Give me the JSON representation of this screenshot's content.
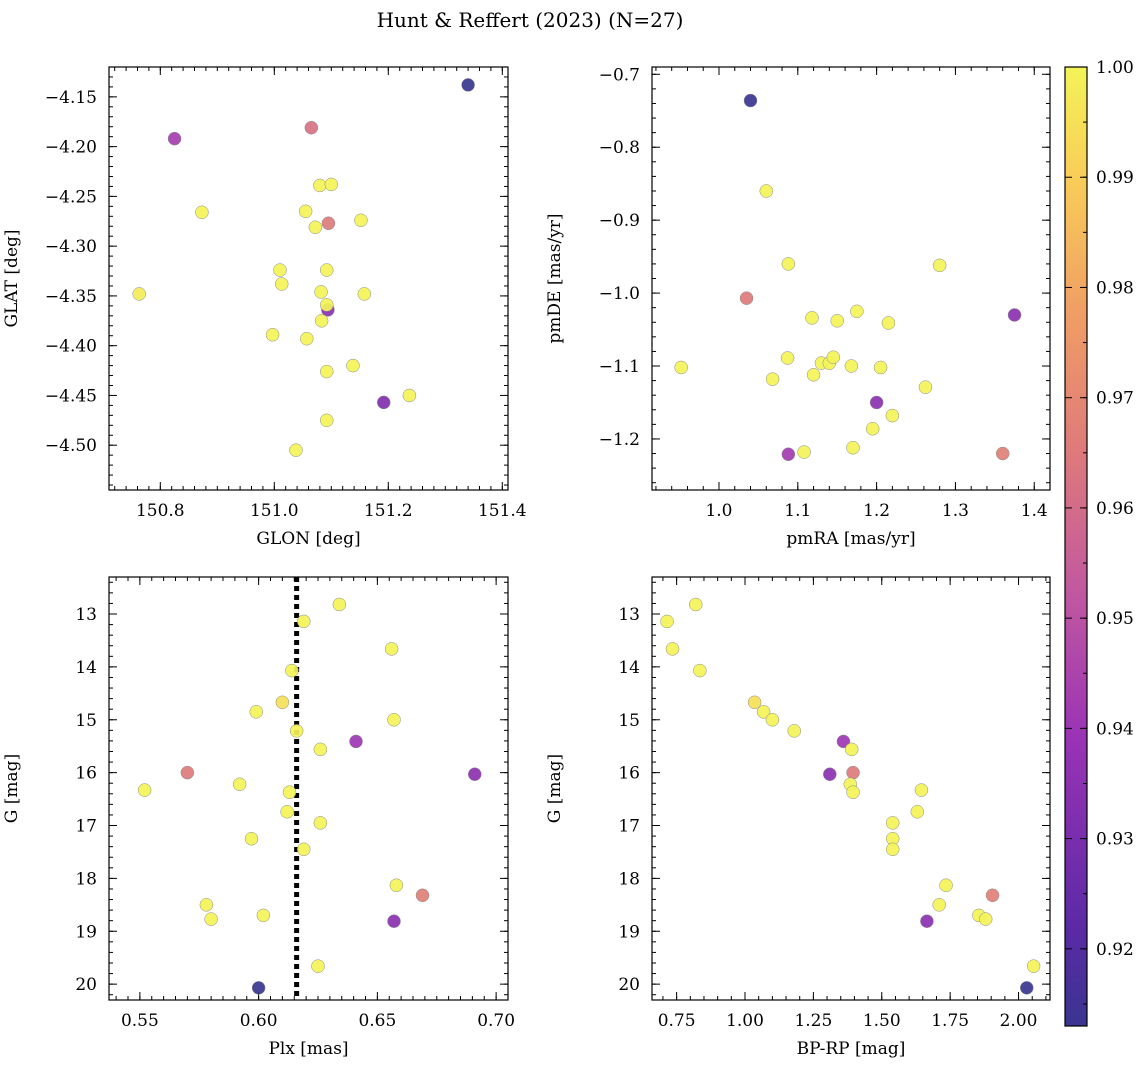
{
  "chart_data": {
    "title": "Hunt & Reffert (2023) (N=27)",
    "colormap": "plasma",
    "colorbar": {
      "vmin": 0.913,
      "vmax": 1.0,
      "ticks": [
        0.92,
        0.93,
        0.94,
        0.95,
        0.96,
        0.97,
        0.98,
        0.99,
        1.0
      ],
      "tick_labels": [
        "0.92",
        "0.93",
        "0.94",
        "0.95",
        "0.96",
        "0.97",
        "0.98",
        "0.99",
        "1.00"
      ]
    },
    "panels": [
      {
        "type": "scatter",
        "xlabel": "GLON [deg]",
        "ylabel": "GLAT [deg]",
        "xlim": [
          150.71,
          151.41
        ],
        "ylim": [
          -4.545,
          -4.12
        ],
        "y_inverted": false,
        "xticks": [
          150.8,
          151.0,
          151.2,
          151.4
        ],
        "xtick_labels": [
          "150.8",
          "151.0",
          "151.2",
          "151.4"
        ],
        "yticks": [
          -4.5,
          -4.45,
          -4.4,
          -4.35,
          -4.3,
          -4.25,
          -4.2,
          -4.15
        ],
        "ytick_labels": [
          "−4.50",
          "−4.45",
          "−4.40",
          "−4.35",
          "−4.30",
          "−4.25",
          "−4.20",
          "−4.15"
        ],
        "x_minor": 0.02,
        "y_minor": 0.01,
        "points": [
          {
            "x": 151.34,
            "y": -4.138,
            "c": 0.913
          },
          {
            "x": 150.825,
            "y": -4.192,
            "c": 0.943
          },
          {
            "x": 151.065,
            "y": -4.181,
            "c": 0.962
          },
          {
            "x": 150.873,
            "y": -4.266,
            "c": 1.0
          },
          {
            "x": 151.08,
            "y": -4.239,
            "c": 1.0
          },
          {
            "x": 151.1,
            "y": -4.238,
            "c": 1.0
          },
          {
            "x": 151.055,
            "y": -4.265,
            "c": 1.0
          },
          {
            "x": 151.072,
            "y": -4.281,
            "c": 1.0
          },
          {
            "x": 151.095,
            "y": -4.277,
            "c": 0.965
          },
          {
            "x": 151.152,
            "y": -4.274,
            "c": 1.0
          },
          {
            "x": 150.763,
            "y": -4.348,
            "c": 0.998
          },
          {
            "x": 151.01,
            "y": -4.324,
            "c": 1.0
          },
          {
            "x": 151.013,
            "y": -4.338,
            "c": 1.0
          },
          {
            "x": 151.092,
            "y": -4.324,
            "c": 1.0
          },
          {
            "x": 151.082,
            "y": -4.346,
            "c": 1.0
          },
          {
            "x": 151.158,
            "y": -4.348,
            "c": 1.0
          },
          {
            "x": 151.094,
            "y": -4.364,
            "c": 0.935
          },
          {
            "x": 151.092,
            "y": -4.359,
            "c": 1.0
          },
          {
            "x": 151.083,
            "y": -4.375,
            "c": 1.0
          },
          {
            "x": 150.997,
            "y": -4.389,
            "c": 1.0
          },
          {
            "x": 151.057,
            "y": -4.393,
            "c": 1.0
          },
          {
            "x": 151.092,
            "y": -4.426,
            "c": 1.0
          },
          {
            "x": 151.138,
            "y": -4.42,
            "c": 1.0
          },
          {
            "x": 151.192,
            "y": -4.457,
            "c": 0.932
          },
          {
            "x": 151.237,
            "y": -4.45,
            "c": 1.0
          },
          {
            "x": 151.092,
            "y": -4.475,
            "c": 1.0
          },
          {
            "x": 151.038,
            "y": -4.505,
            "c": 1.0
          }
        ]
      },
      {
        "type": "scatter",
        "xlabel": "pmRA [mas/yr]",
        "ylabel": "pmDE [mas/yr]",
        "xlim": [
          0.915,
          1.42
        ],
        "ylim": [
          -1.27,
          -0.69
        ],
        "y_inverted": false,
        "xticks": [
          1.0,
          1.1,
          1.2,
          1.3,
          1.4
        ],
        "xtick_labels": [
          "1.0",
          "1.1",
          "1.2",
          "1.3",
          "1.4"
        ],
        "yticks": [
          -1.2,
          -1.1,
          -1.0,
          -0.9,
          -0.8,
          -0.7
        ],
        "ytick_labels": [
          "−1.2",
          "−1.1",
          "−1.0",
          "−0.9",
          "−0.8",
          "−0.7"
        ],
        "x_minor": 0.02,
        "y_minor": 0.02,
        "points": [
          {
            "x": 1.04,
            "y": -0.736,
            "c": 0.913
          },
          {
            "x": 1.06,
            "y": -0.86,
            "c": 1.0
          },
          {
            "x": 1.088,
            "y": -0.96,
            "c": 1.0
          },
          {
            "x": 1.28,
            "y": -0.962,
            "c": 1.0
          },
          {
            "x": 1.035,
            "y": -1.007,
            "c": 0.965
          },
          {
            "x": 1.375,
            "y": -1.03,
            "c": 0.935
          },
          {
            "x": 1.118,
            "y": -1.034,
            "c": 1.0
          },
          {
            "x": 1.15,
            "y": -1.038,
            "c": 1.0
          },
          {
            "x": 1.175,
            "y": -1.025,
            "c": 1.0
          },
          {
            "x": 1.215,
            "y": -1.041,
            "c": 1.0
          },
          {
            "x": 0.952,
            "y": -1.102,
            "c": 1.0
          },
          {
            "x": 1.068,
            "y": -1.118,
            "c": 1.0
          },
          {
            "x": 1.087,
            "y": -1.089,
            "c": 1.0
          },
          {
            "x": 1.12,
            "y": -1.112,
            "c": 1.0
          },
          {
            "x": 1.13,
            "y": -1.096,
            "c": 1.0
          },
          {
            "x": 1.14,
            "y": -1.096,
            "c": 1.0
          },
          {
            "x": 1.145,
            "y": -1.088,
            "c": 1.0
          },
          {
            "x": 1.168,
            "y": -1.1,
            "c": 1.0
          },
          {
            "x": 1.205,
            "y": -1.102,
            "c": 1.0
          },
          {
            "x": 1.262,
            "y": -1.129,
            "c": 1.0
          },
          {
            "x": 1.2,
            "y": -1.15,
            "c": 0.935
          },
          {
            "x": 1.22,
            "y": -1.168,
            "c": 1.0
          },
          {
            "x": 1.195,
            "y": -1.186,
            "c": 1.0
          },
          {
            "x": 1.17,
            "y": -1.212,
            "c": 1.0
          },
          {
            "x": 1.108,
            "y": -1.218,
            "c": 1.0
          },
          {
            "x": 1.088,
            "y": -1.221,
            "c": 0.942
          },
          {
            "x": 1.36,
            "y": -1.22,
            "c": 0.967
          }
        ]
      },
      {
        "type": "scatter",
        "xlabel": "Plx [mas]",
        "ylabel": "G [mag]",
        "xlim": [
          0.537,
          0.705
        ],
        "ylim": [
          12.3,
          20.3
        ],
        "y_inverted": true,
        "vline": {
          "x": 0.616,
          "style": "dotted"
        },
        "xticks": [
          0.55,
          0.6,
          0.65,
          0.7
        ],
        "xtick_labels": [
          "0.55",
          "0.60",
          "0.65",
          "0.70"
        ],
        "yticks": [
          13,
          14,
          15,
          16,
          17,
          18,
          19,
          20
        ],
        "ytick_labels": [
          "13",
          "14",
          "15",
          "16",
          "17",
          "18",
          "19",
          "20"
        ],
        "x_minor": 0.005,
        "y_minor": 0.2,
        "points": [
          {
            "x": 0.634,
            "y": 12.82,
            "c": 1.0
          },
          {
            "x": 0.619,
            "y": 13.14,
            "c": 1.0
          },
          {
            "x": 0.656,
            "y": 13.66,
            "c": 1.0
          },
          {
            "x": 0.614,
            "y": 14.07,
            "c": 1.0
          },
          {
            "x": 0.61,
            "y": 14.67,
            "c": 0.995
          },
          {
            "x": 0.599,
            "y": 14.85,
            "c": 1.0
          },
          {
            "x": 0.657,
            "y": 15.0,
            "c": 1.0
          },
          {
            "x": 0.616,
            "y": 15.21,
            "c": 1.0
          },
          {
            "x": 0.641,
            "y": 15.41,
            "c": 0.94
          },
          {
            "x": 0.626,
            "y": 15.56,
            "c": 1.0
          },
          {
            "x": 0.57,
            "y": 16.0,
            "c": 0.965
          },
          {
            "x": 0.691,
            "y": 16.03,
            "c": 0.935
          },
          {
            "x": 0.592,
            "y": 16.22,
            "c": 1.0
          },
          {
            "x": 0.552,
            "y": 16.33,
            "c": 1.0
          },
          {
            "x": 0.613,
            "y": 16.37,
            "c": 1.0
          },
          {
            "x": 0.612,
            "y": 16.74,
            "c": 1.0
          },
          {
            "x": 0.626,
            "y": 16.95,
            "c": 1.0
          },
          {
            "x": 0.597,
            "y": 17.25,
            "c": 1.0
          },
          {
            "x": 0.619,
            "y": 17.45,
            "c": 1.0
          },
          {
            "x": 0.658,
            "y": 18.13,
            "c": 1.0
          },
          {
            "x": 0.669,
            "y": 18.32,
            "c": 0.967
          },
          {
            "x": 0.578,
            "y": 18.5,
            "c": 1.0
          },
          {
            "x": 0.602,
            "y": 18.7,
            "c": 1.0
          },
          {
            "x": 0.58,
            "y": 18.77,
            "c": 1.0
          },
          {
            "x": 0.657,
            "y": 18.81,
            "c": 0.935
          },
          {
            "x": 0.625,
            "y": 19.66,
            "c": 1.0
          },
          {
            "x": 0.6,
            "y": 20.07,
            "c": 0.913
          }
        ]
      },
      {
        "type": "scatter",
        "xlabel": "BP-RP [mag]",
        "ylabel": "G [mag]",
        "xlim": [
          0.66,
          2.115
        ],
        "ylim": [
          12.3,
          20.3
        ],
        "y_inverted": true,
        "xticks": [
          0.75,
          1.0,
          1.25,
          1.5,
          1.75,
          2.0
        ],
        "xtick_labels": [
          "0.75",
          "1.00",
          "1.25",
          "1.50",
          "1.75",
          "2.00"
        ],
        "yticks": [
          13,
          14,
          15,
          16,
          17,
          18,
          19,
          20
        ],
        "ytick_labels": [
          "13",
          "14",
          "15",
          "16",
          "17",
          "18",
          "19",
          "20"
        ],
        "x_minor": 0.05,
        "y_minor": 0.2,
        "points": [
          {
            "x": 0.82,
            "y": 12.82,
            "c": 1.0
          },
          {
            "x": 0.715,
            "y": 13.14,
            "c": 1.0
          },
          {
            "x": 0.735,
            "y": 13.66,
            "c": 1.0
          },
          {
            "x": 0.835,
            "y": 14.07,
            "c": 1.0
          },
          {
            "x": 1.035,
            "y": 14.67,
            "c": 0.995
          },
          {
            "x": 1.068,
            "y": 14.85,
            "c": 1.0
          },
          {
            "x": 1.1,
            "y": 15.0,
            "c": 1.0
          },
          {
            "x": 1.18,
            "y": 15.21,
            "c": 1.0
          },
          {
            "x": 1.36,
            "y": 15.41,
            "c": 0.94
          },
          {
            "x": 1.39,
            "y": 15.56,
            "c": 1.0
          },
          {
            "x": 1.395,
            "y": 16.0,
            "c": 0.965
          },
          {
            "x": 1.31,
            "y": 16.03,
            "c": 0.935
          },
          {
            "x": 1.385,
            "y": 16.22,
            "c": 1.0
          },
          {
            "x": 1.645,
            "y": 16.33,
            "c": 1.0
          },
          {
            "x": 1.395,
            "y": 16.37,
            "c": 1.0
          },
          {
            "x": 1.63,
            "y": 16.74,
            "c": 1.0
          },
          {
            "x": 1.54,
            "y": 16.95,
            "c": 1.0
          },
          {
            "x": 1.54,
            "y": 17.25,
            "c": 1.0
          },
          {
            "x": 1.54,
            "y": 17.45,
            "c": 1.0
          },
          {
            "x": 1.735,
            "y": 18.13,
            "c": 1.0
          },
          {
            "x": 1.905,
            "y": 18.32,
            "c": 0.967
          },
          {
            "x": 1.71,
            "y": 18.5,
            "c": 1.0
          },
          {
            "x": 1.855,
            "y": 18.7,
            "c": 1.0
          },
          {
            "x": 1.88,
            "y": 18.77,
            "c": 1.0
          },
          {
            "x": 1.665,
            "y": 18.81,
            "c": 0.935
          },
          {
            "x": 2.055,
            "y": 19.66,
            "c": 1.0
          },
          {
            "x": 2.03,
            "y": 20.07,
            "c": 0.913
          }
        ]
      }
    ]
  }
}
